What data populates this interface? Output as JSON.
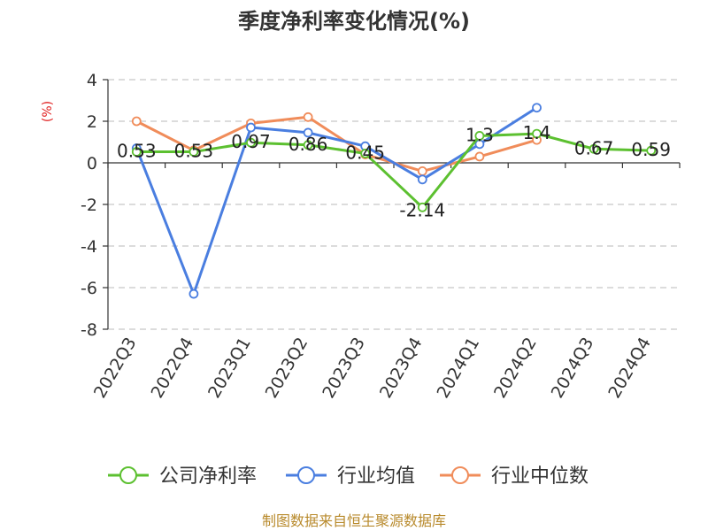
{
  "chart_data": {
    "type": "line",
    "title": "季度净利率变化情况(%)",
    "ylabel": "(%)",
    "categories": [
      "2022Q3",
      "2022Q4",
      "2023Q1",
      "2023Q2",
      "2023Q3",
      "2023Q4",
      "2024Q1",
      "2024Q2",
      "2024Q3",
      "2024Q4"
    ],
    "ylim": [
      -8,
      4
    ],
    "yticks": [
      4,
      2,
      0,
      -2,
      -4,
      -6,
      -8
    ],
    "grid": true,
    "legend_position": "bottom",
    "series": [
      {
        "name": "公司净利率",
        "color": "#5cc030",
        "values": [
          0.53,
          0.53,
          0.97,
          0.86,
          0.45,
          -2.14,
          1.3,
          1.4,
          0.67,
          0.59
        ],
        "labels": [
          "0.53",
          "0.53",
          "0.97",
          "0.86",
          "0.45",
          "-2.14",
          "1.3",
          "1.4",
          "0.67",
          "0.59"
        ]
      },
      {
        "name": "行业均值",
        "color": "#4a7ee0",
        "values": [
          0.7,
          -6.3,
          1.7,
          1.45,
          0.8,
          -0.8,
          0.9,
          2.65,
          null,
          null
        ]
      },
      {
        "name": "行业中位数",
        "color": "#f08c5a",
        "values": [
          2.0,
          0.6,
          1.9,
          2.2,
          0.4,
          -0.4,
          0.3,
          1.1,
          null,
          null
        ]
      }
    ]
  },
  "source_text": "制图数据来自恒生聚源数据库"
}
